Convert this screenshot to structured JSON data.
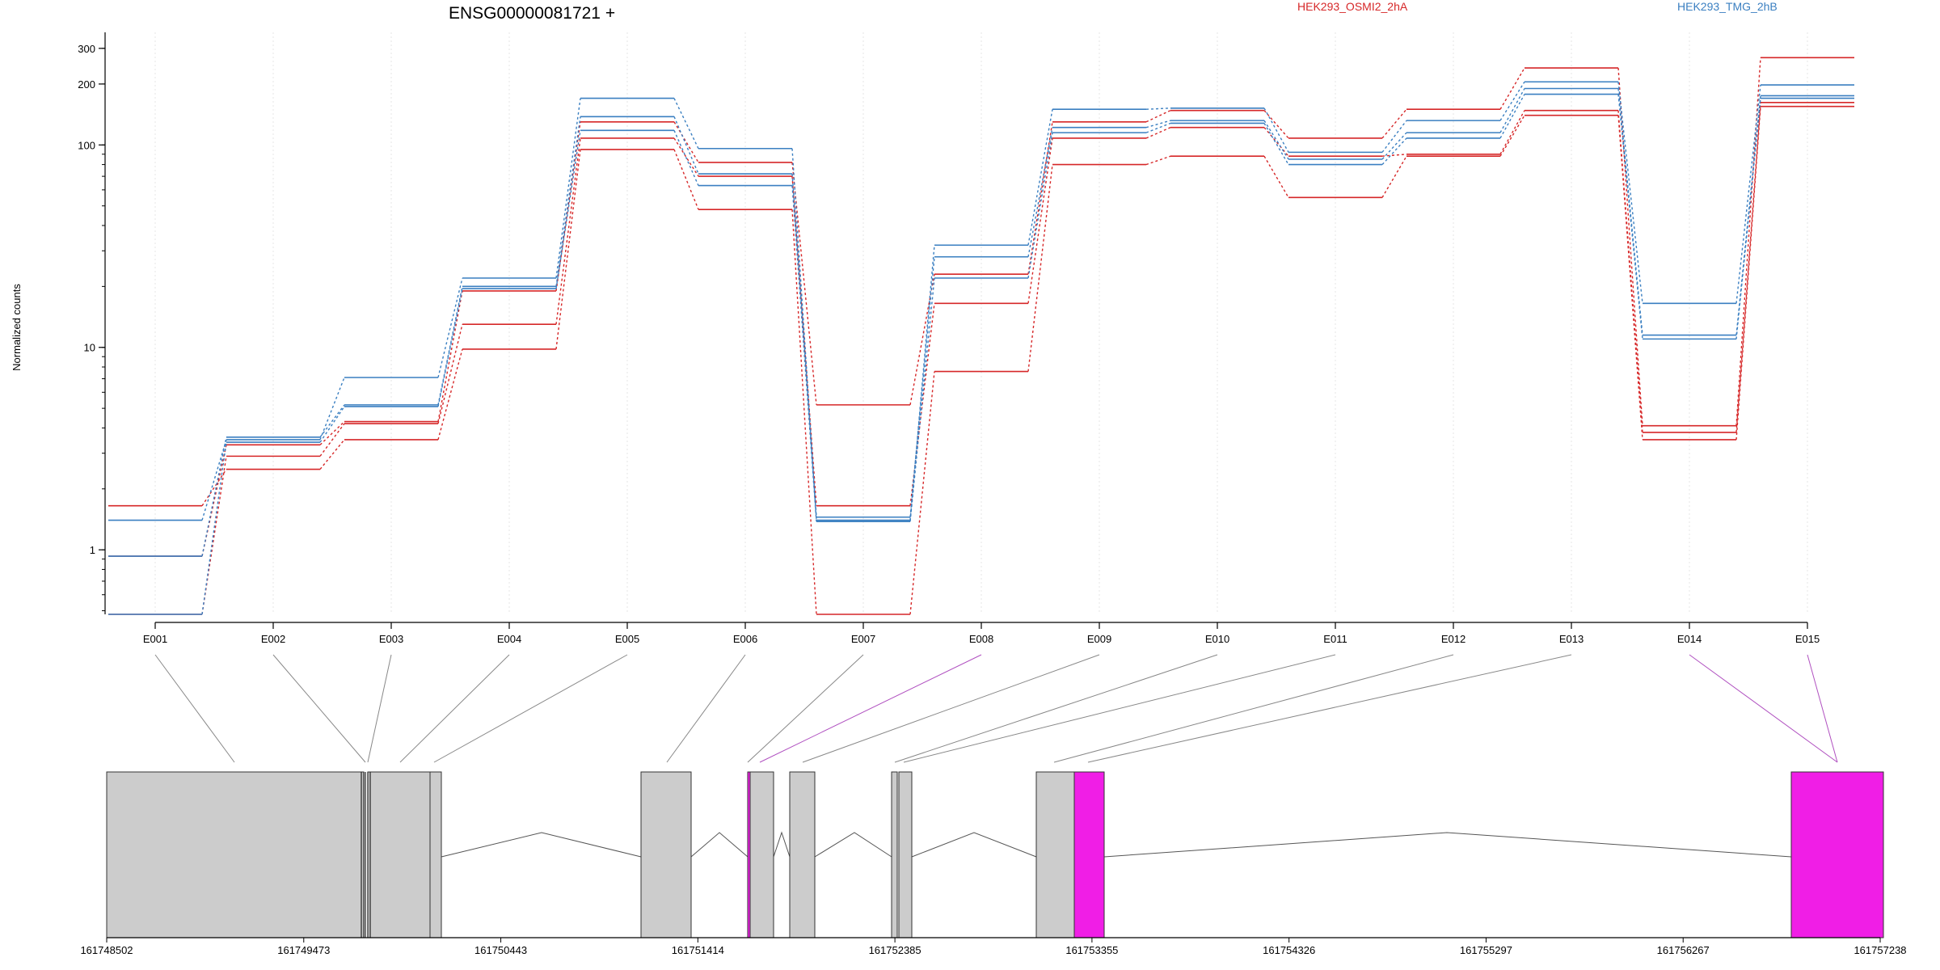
{
  "title": "ENSG00000081721 +",
  "legend": [
    {
      "label": "HEK293_OSMI2_2hA",
      "color": "#d62728"
    },
    {
      "label": "HEK293_TMG_2hB",
      "color": "#3a7fc1"
    }
  ],
  "chart_data": {
    "type": "line",
    "title": "ENSG00000081721 +",
    "xlabel": "",
    "ylabel": "Normalized counts",
    "y_scale": "log",
    "ylim": [
      0.48,
      360
    ],
    "y_ticks": [
      1,
      10,
      100,
      200,
      300
    ],
    "grid": "vertical dotted",
    "legend_position": "top-right",
    "categories": [
      "E001",
      "E002",
      "E003",
      "E004",
      "E005",
      "E006",
      "E007",
      "E008",
      "E009",
      "E010",
      "E011",
      "E012",
      "E013",
      "E014",
      "E015"
    ],
    "series": [
      {
        "group": "HEK293_OSMI2_2hA",
        "color": "#d62728",
        "values": [
          1.65,
          2.5,
          3.5,
          9.8,
          95,
          48,
          0.48,
          7.6,
          80,
          88,
          55,
          88,
          140,
          3.5,
          155
        ]
      },
      {
        "group": "HEK293_OSMI2_2hA",
        "color": "#d62728",
        "values": [
          0.48,
          2.9,
          4.2,
          13,
          108,
          70,
          1.65,
          16.5,
          108,
          122,
          88,
          90,
          148,
          3.8,
          162
        ]
      },
      {
        "group": "HEK293_OSMI2_2hA",
        "color": "#d62728",
        "values": [
          0.93,
          3.3,
          4.3,
          19,
          130,
          82,
          5.2,
          23,
          130,
          148,
          108,
          150,
          240,
          4.1,
          270
        ]
      },
      {
        "group": "HEK293_TMG_2hB",
        "color": "#3a7fc1",
        "values": [
          1.4,
          3.5,
          7.1,
          22,
          170,
          96,
          1.4,
          32,
          150,
          152,
          92,
          132,
          205,
          16.5,
          198
        ]
      },
      {
        "group": "HEK293_TMG_2hB",
        "color": "#3a7fc1",
        "values": [
          0.93,
          3.6,
          5.2,
          20,
          138,
          72,
          1.45,
          28,
          122,
          132,
          85,
          115,
          190,
          11.5,
          175
        ]
      },
      {
        "group": "HEK293_TMG_2hB",
        "color": "#3a7fc1",
        "values": [
          0.48,
          3.4,
          5.1,
          19.5,
          118,
          63,
          1.38,
          22,
          115,
          128,
          80,
          108,
          178,
          11,
          170
        ]
      }
    ]
  },
  "gene_model": {
    "coordinate_ticks": [
      "161748502",
      "161749473",
      "161750443",
      "161751414",
      "161752385",
      "161753355",
      "161754326",
      "161755297",
      "161756267",
      "161757238"
    ],
    "exons": [
      {
        "id": "E001",
        "highlighted": false
      },
      {
        "id": "E002",
        "highlighted": false
      },
      {
        "id": "E003",
        "highlighted": false
      },
      {
        "id": "E004",
        "highlighted": false
      },
      {
        "id": "E005",
        "highlighted": false
      },
      {
        "id": "E006",
        "highlighted": false
      },
      {
        "id": "E007",
        "highlighted": false
      },
      {
        "id": "E008",
        "highlighted": true
      },
      {
        "id": "E009",
        "highlighted": false
      },
      {
        "id": "E010",
        "highlighted": false
      },
      {
        "id": "E011",
        "highlighted": false
      },
      {
        "id": "E012",
        "highlighted": false
      },
      {
        "id": "E013",
        "highlighted": false
      },
      {
        "id": "E014",
        "highlighted": true
      },
      {
        "id": "E015",
        "highlighted": true
      }
    ],
    "colors": {
      "exon_fill": "#cccccc",
      "highlight_fill": "#f01ee6",
      "connector": "#888888",
      "highlight_connector": "#b050c0"
    }
  }
}
